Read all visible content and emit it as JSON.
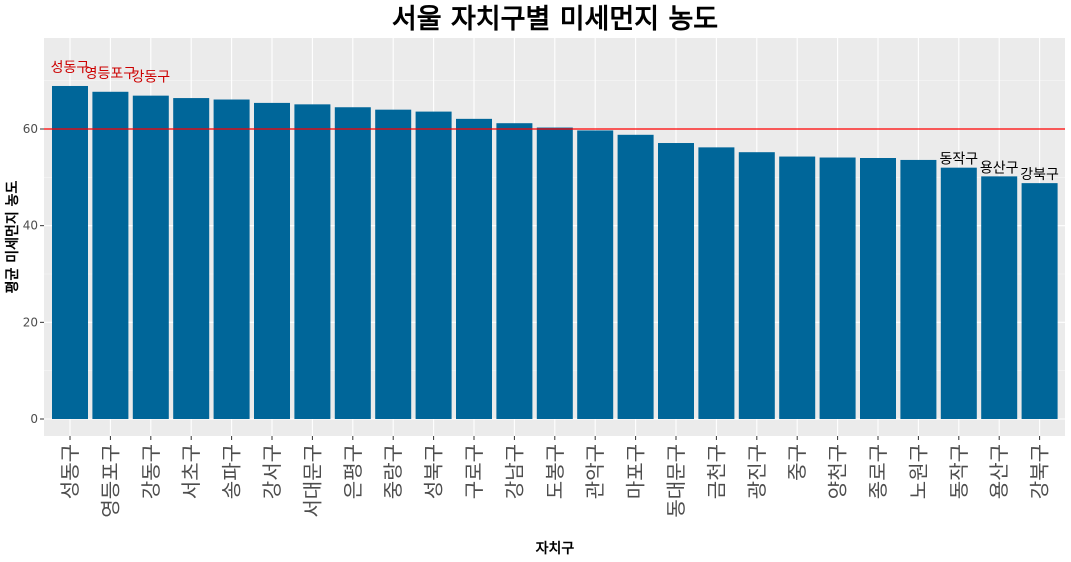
{
  "chart_data": {
    "type": "bar",
    "title": "서울 자치구별 미세먼지 농도",
    "xlabel": "자치구",
    "ylabel": "평균 미세먼지 농도",
    "categories": [
      "성동구",
      "영등포구",
      "강동구",
      "서초구",
      "송파구",
      "강서구",
      "서대문구",
      "은평구",
      "중랑구",
      "성북구",
      "구로구",
      "강남구",
      "도봉구",
      "관악구",
      "마포구",
      "동대문구",
      "금천구",
      "광진구",
      "중구",
      "양천구",
      "종로구",
      "노원구",
      "동작구",
      "용산구",
      "강북구"
    ],
    "values": [
      68.9,
      67.7,
      66.9,
      66.4,
      66.1,
      65.4,
      65.1,
      64.5,
      64.0,
      63.6,
      62.1,
      61.2,
      60.3,
      59.7,
      58.8,
      57.1,
      56.2,
      55.2,
      54.3,
      54.1,
      54.0,
      53.6,
      52.0,
      50.2,
      48.8
    ],
    "yticks": [
      "0",
      "20",
      "40",
      "60"
    ],
    "ylim": [
      0,
      77
    ],
    "grid": true,
    "bar_color": "#006699",
    "reference_line": 60,
    "reference_line_color": "#ff0000",
    "top_labels": [
      "성동구",
      "영등포구",
      "강동구"
    ],
    "top_label_color": "#cc0000",
    "bottom_labels": [
      "동작구",
      "용산구",
      "강북구"
    ],
    "bottom_label_color": "#000000"
  }
}
